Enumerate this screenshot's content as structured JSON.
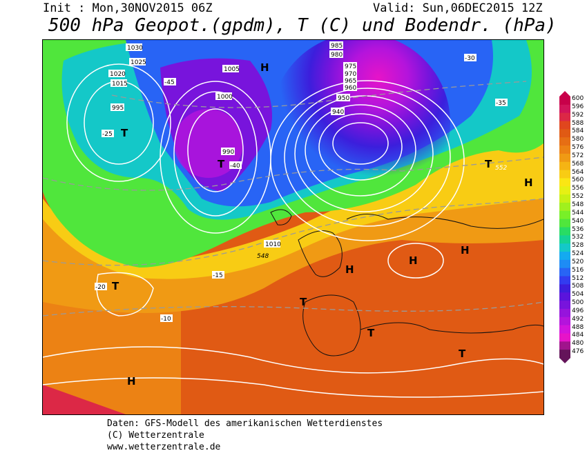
{
  "header": {
    "init": "Init : Mon,30NOV2015 06Z",
    "valid": "Valid: Sun,06DEC2015 12Z",
    "title": "500 hPa Geopot.(gpdm), T (C) und Bodendr. (hPa)"
  },
  "legend": {
    "levels": [
      "600",
      "596",
      "592",
      "588",
      "584",
      "580",
      "576",
      "572",
      "568",
      "564",
      "560",
      "556",
      "552",
      "548",
      "544",
      "540",
      "536",
      "532",
      "528",
      "524",
      "520",
      "516",
      "512",
      "508",
      "504",
      "500",
      "496",
      "492",
      "488",
      "484",
      "480",
      "476"
    ],
    "colors": [
      "#c8004a",
      "#d2145a",
      "#dc2846",
      "#e0461e",
      "#e05a14",
      "#e66e14",
      "#ec8214",
      "#f09a14",
      "#f5b414",
      "#f8cc14",
      "#fae614",
      "#e6f014",
      "#c8f014",
      "#a0f01e",
      "#78f028",
      "#50e63c",
      "#28dc64",
      "#14d296",
      "#14c8c8",
      "#14aaf0",
      "#1e8cf5",
      "#2864f5",
      "#323cf0",
      "#3c1edc",
      "#5a14dc",
      "#7814dc",
      "#9614dc",
      "#b414dc",
      "#d214dc",
      "#e614c8",
      "#a0148c",
      "#64145a"
    ]
  },
  "pressure_labels": [
    "1030",
    "1025",
    "1020",
    "1015",
    "1010",
    "1005",
    "1000",
    "995",
    "990",
    "985",
    "980",
    "975",
    "970",
    "965",
    "960",
    "950",
    "940"
  ],
  "temperature_labels": [
    "-10",
    "-15",
    "-20",
    "-25",
    "-30",
    "-35",
    "-40",
    "-45"
  ],
  "highs_lows": [
    "H",
    "T"
  ],
  "extra_labels": [
    "552",
    "548"
  ],
  "credits": {
    "line1": "Daten: GFS-Modell des amerikanischen Wetterdienstes",
    "line2": "(C) Wetterzentrale",
    "line3": "www.wetterzentrale.de"
  }
}
